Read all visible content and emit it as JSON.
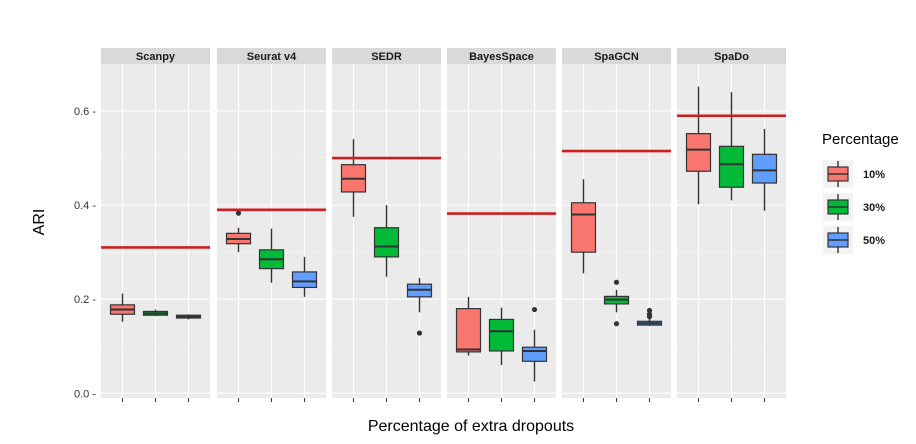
{
  "chart_data": {
    "type": "boxplot",
    "ylabel": "ARI",
    "xlabel": "Percentage of extra dropouts",
    "ylim": [
      -0.01,
      0.7
    ],
    "yticks": [
      0.0,
      0.2,
      0.4,
      0.6
    ],
    "ytick_labels": [
      "0.0 -",
      "0.2 -",
      "0.4 -",
      "0.6 -"
    ],
    "legend": {
      "title": "Percentage",
      "position": "right",
      "items": [
        {
          "label": "10%",
          "color": "#f8766d"
        },
        {
          "label": "30%",
          "color": "#00ba38"
        },
        {
          "label": "50%",
          "color": "#619cff"
        }
      ]
    },
    "reference_line_color": "#cc1f1f",
    "facets": [
      {
        "name": "Scanpy",
        "reference": 0.31,
        "boxes": [
          {
            "group": "10%",
            "q1": 0.168,
            "median": 0.178,
            "q3": 0.188,
            "whisker_low": 0.152,
            "whisker_high": 0.212,
            "outliers": []
          },
          {
            "group": "30%",
            "q1": 0.166,
            "median": 0.17,
            "q3": 0.174,
            "whisker_low": 0.164,
            "whisker_high": 0.178,
            "outliers": []
          },
          {
            "group": "50%",
            "q1": 0.16,
            "median": 0.163,
            "q3": 0.166,
            "whisker_low": 0.157,
            "whisker_high": 0.168,
            "outliers": []
          }
        ]
      },
      {
        "name": "Seurat v4",
        "reference": 0.39,
        "boxes": [
          {
            "group": "10%",
            "q1": 0.318,
            "median": 0.328,
            "q3": 0.34,
            "whisker_low": 0.3,
            "whisker_high": 0.352,
            "outliers": [
              0.383
            ]
          },
          {
            "group": "30%",
            "q1": 0.265,
            "median": 0.285,
            "q3": 0.305,
            "whisker_low": 0.235,
            "whisker_high": 0.35,
            "outliers": []
          },
          {
            "group": "50%",
            "q1": 0.225,
            "median": 0.238,
            "q3": 0.258,
            "whisker_low": 0.205,
            "whisker_high": 0.29,
            "outliers": []
          }
        ]
      },
      {
        "name": "SEDR",
        "reference": 0.5,
        "boxes": [
          {
            "group": "10%",
            "q1": 0.428,
            "median": 0.456,
            "q3": 0.486,
            "whisker_low": 0.375,
            "whisker_high": 0.54,
            "outliers": []
          },
          {
            "group": "30%",
            "q1": 0.29,
            "median": 0.312,
            "q3": 0.352,
            "whisker_low": 0.248,
            "whisker_high": 0.4,
            "outliers": []
          },
          {
            "group": "50%",
            "q1": 0.205,
            "median": 0.22,
            "q3": 0.232,
            "whisker_low": 0.172,
            "whisker_high": 0.245,
            "outliers": [
              0.128
            ]
          }
        ]
      },
      {
        "name": "BayesSpace",
        "reference": 0.382,
        "boxes": [
          {
            "group": "10%",
            "q1": 0.088,
            "median": 0.093,
            "q3": 0.18,
            "whisker_low": 0.08,
            "whisker_high": 0.205,
            "outliers": []
          },
          {
            "group": "30%",
            "q1": 0.09,
            "median": 0.132,
            "q3": 0.157,
            "whisker_low": 0.06,
            "whisker_high": 0.182,
            "outliers": []
          },
          {
            "group": "50%",
            "q1": 0.068,
            "median": 0.09,
            "q3": 0.098,
            "whisker_low": 0.025,
            "whisker_high": 0.135,
            "outliers": [
              0.178
            ]
          }
        ]
      },
      {
        "name": "SpaGCN",
        "reference": 0.515,
        "boxes": [
          {
            "group": "10%",
            "q1": 0.3,
            "median": 0.38,
            "q3": 0.405,
            "whisker_low": 0.255,
            "whisker_high": 0.455,
            "outliers": []
          },
          {
            "group": "30%",
            "q1": 0.19,
            "median": 0.199,
            "q3": 0.206,
            "whisker_low": 0.172,
            "whisker_high": 0.22,
            "outliers": [
              0.236,
              0.148
            ]
          },
          {
            "group": "50%",
            "q1": 0.145,
            "median": 0.149,
            "q3": 0.153,
            "whisker_low": 0.143,
            "whisker_high": 0.158,
            "outliers": [
              0.176,
              0.168,
              0.163
            ]
          }
        ]
      },
      {
        "name": "SpaDo",
        "reference": 0.59,
        "boxes": [
          {
            "group": "10%",
            "q1": 0.472,
            "median": 0.518,
            "q3": 0.552,
            "whisker_low": 0.402,
            "whisker_high": 0.652,
            "outliers": []
          },
          {
            "group": "30%",
            "q1": 0.438,
            "median": 0.487,
            "q3": 0.525,
            "whisker_low": 0.41,
            "whisker_high": 0.64,
            "outliers": []
          },
          {
            "group": "50%",
            "q1": 0.447,
            "median": 0.474,
            "q3": 0.508,
            "whisker_low": 0.388,
            "whisker_high": 0.562,
            "outliers": []
          }
        ]
      }
    ]
  }
}
